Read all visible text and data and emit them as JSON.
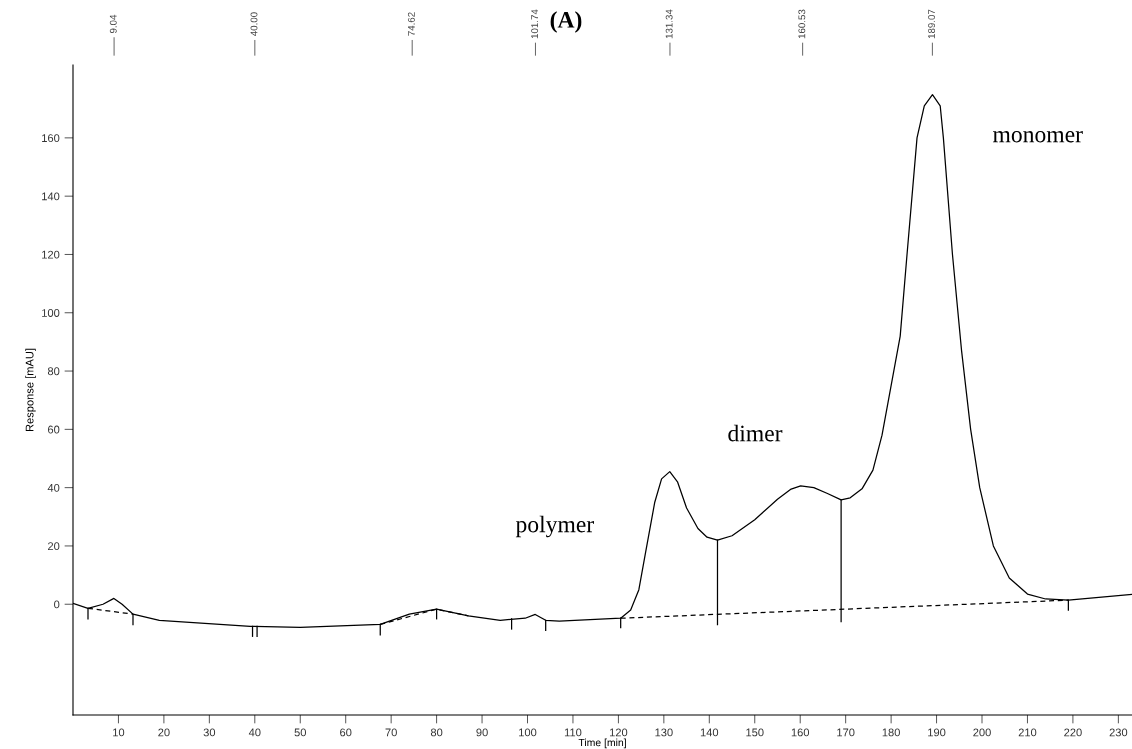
{
  "chart_data": {
    "type": "line",
    "title": "(A)",
    "xlabel": "Time [min]",
    "ylabel": "Response [mAU]",
    "xlim": [
      0,
      233
    ],
    "ylim": [
      -38,
      185
    ],
    "xticks": [
      10,
      20,
      30,
      40,
      50,
      60,
      70,
      80,
      90,
      100,
      110,
      120,
      130,
      140,
      150,
      160,
      170,
      180,
      190,
      200,
      210,
      220,
      230
    ],
    "yticks": [
      0,
      20,
      40,
      60,
      80,
      100,
      120,
      140,
      160
    ],
    "grid": false,
    "legend": false,
    "series": [
      {
        "color": "#000000",
        "line_style": "solid",
        "x": [
          0,
          3.3,
          6.6,
          9,
          10.8,
          13.2,
          19,
          39,
          50,
          67.6,
          74,
          80,
          87,
          94,
          99.5,
          101.7,
          104,
          107,
          120.5,
          122.7,
          124.5,
          126,
          128,
          129.5,
          131.3,
          133,
          135,
          137.5,
          139.5,
          141.8,
          145,
          150,
          155,
          158,
          160.1,
          163,
          166,
          169,
          171,
          173.6,
          176,
          178,
          180,
          182,
          183.5,
          185.7,
          187.3,
          189.1,
          190.8,
          191.5,
          193.5,
          195.5,
          197.5,
          199.5,
          202.5,
          206,
          210,
          214,
          219,
          233
        ],
        "values": [
          0.3,
          -1.4,
          0,
          2,
          0,
          -3.4,
          -5.5,
          -7.6,
          -7.9,
          -6.9,
          -3.4,
          -1.7,
          -4,
          -5.5,
          -4.8,
          -3.5,
          -5.5,
          -5.8,
          -4.8,
          -2,
          5,
          18,
          35,
          43,
          45.5,
          42,
          33,
          26,
          23,
          22,
          23.5,
          29,
          36,
          39.5,
          40.6,
          40,
          38,
          35.8,
          36.5,
          39.6,
          46,
          58,
          75,
          92,
          120,
          160,
          171,
          174.8,
          171,
          160,
          120,
          87,
          60,
          40,
          20,
          9,
          3.5,
          1.8,
          1.4,
          3.4
        ]
      },
      {
        "color": "#000000",
        "line_style": "dashed",
        "x": [
          3.3,
          13.2
        ],
        "values": [
          -1.4,
          -3.4
        ]
      },
      {
        "color": "#000000",
        "line_style": "dashed",
        "x": [
          67.6,
          80,
          87
        ],
        "values": [
          -6.9,
          -1.7,
          -4
        ]
      },
      {
        "color": "#000000",
        "line_style": "dashed",
        "x": [
          120.5,
          219
        ],
        "values": [
          -4.8,
          1.4
        ]
      },
      {
        "color": "#000000",
        "line_style": "solid",
        "x": [
          141.8,
          141.8
        ],
        "values": [
          22,
          -7
        ]
      },
      {
        "color": "#000000",
        "line_style": "solid",
        "x": [
          169,
          169
        ],
        "values": [
          35.8,
          -6
        ]
      },
      {
        "color": "#000000",
        "line_style": "solid",
        "x": [
          3.3,
          3.3
        ],
        "values": [
          -1.4,
          -5
        ]
      },
      {
        "color": "#000000",
        "line_style": "solid",
        "x": [
          13.2,
          13.2
        ],
        "values": [
          -3.4,
          -7
        ]
      },
      {
        "color": "#000000",
        "line_style": "solid",
        "x": [
          39.5,
          39.5
        ],
        "values": [
          -7.6,
          -11
        ]
      },
      {
        "color": "#000000",
        "line_style": "solid",
        "x": [
          40.5,
          40.5
        ],
        "values": [
          -7.6,
          -11
        ]
      },
      {
        "color": "#000000",
        "line_style": "solid",
        "x": [
          67.6,
          67.6
        ],
        "values": [
          -6.9,
          -10.5
        ]
      },
      {
        "color": "#000000",
        "line_style": "solid",
        "x": [
          80,
          80
        ],
        "values": [
          -1.7,
          -5
        ]
      },
      {
        "color": "#000000",
        "line_style": "solid",
        "x": [
          96.5,
          96.5
        ],
        "values": [
          -5,
          -8.5
        ]
      },
      {
        "color": "#000000",
        "line_style": "solid",
        "x": [
          104,
          104
        ],
        "values": [
          -5.5,
          -9
        ]
      },
      {
        "color": "#000000",
        "line_style": "solid",
        "x": [
          120.5,
          120.5
        ],
        "values": [
          -4.8,
          -8
        ]
      },
      {
        "color": "#000000",
        "line_style": "solid",
        "x": [
          219,
          219
        ],
        "values": [
          1.4,
          -2
        ]
      }
    ],
    "annotations": [
      "9.04",
      "40.00",
      "74.62",
      "101.74",
      "131.34",
      "160.53",
      "189.07",
      "polymer",
      "dimer",
      "monomer"
    ]
  }
}
